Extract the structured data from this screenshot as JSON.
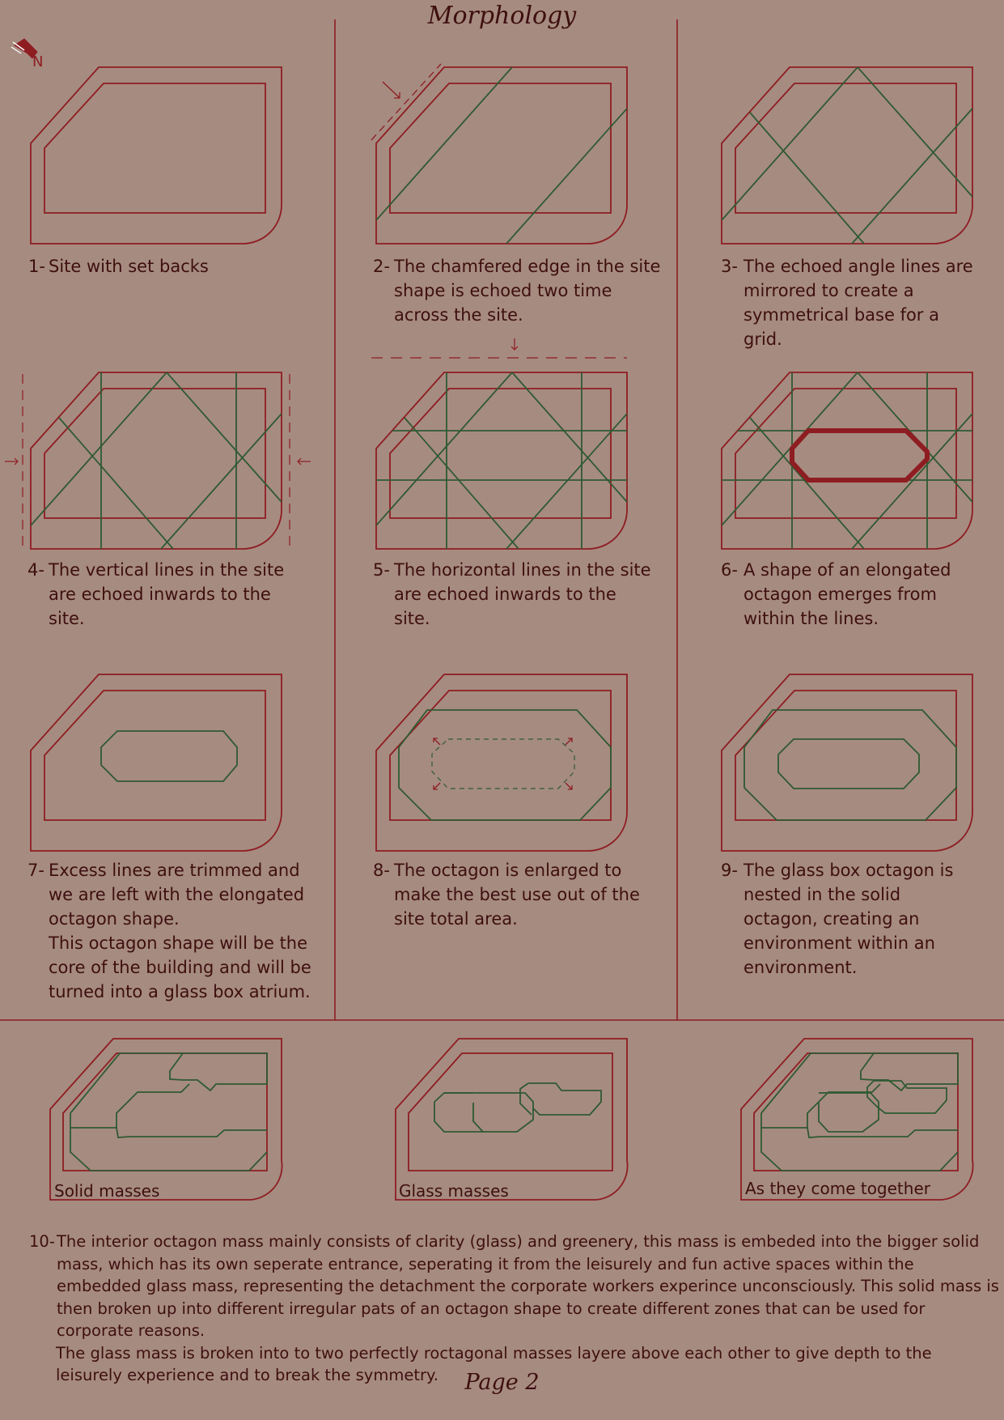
{
  "page": {
    "title": "Morphology",
    "page_label": "Page 2",
    "north_label": "N"
  },
  "steps": [
    {
      "num": "1-",
      "text": "Site with set backs"
    },
    {
      "num": "2-",
      "text": "The chamfered edge in the site shape is echoed two time across the site."
    },
    {
      "num": "3-",
      "text": "The echoed angle lines are mirrored to create a symmetrical base for a grid."
    },
    {
      "num": "4-",
      "text": "The vertical lines in the site are echoed inwards to the site."
    },
    {
      "num": "5-",
      "text": "The horizontal lines in the site are echoed inwards to the site."
    },
    {
      "num": "6-",
      "text": "A shape of an elongated octagon emerges from within the lines."
    },
    {
      "num": "7-",
      "text": "Excess lines are trimmed and we are left with the elongated octagon shape.",
      "text2": "This octagon shape will be the core of the building and will be turned into a glass box atrium."
    },
    {
      "num": "8-",
      "text": "The octagon is enlarged to make the best use out of the site total area."
    },
    {
      "num": "9-",
      "text": "The glass box octagon is nested in the solid octagon, creating an environment within an environment."
    }
  ],
  "masses": [
    {
      "label": "Solid masses"
    },
    {
      "label": "Glass masses"
    },
    {
      "label": "As they come together"
    }
  ],
  "step10": {
    "num": "10-",
    "text": "The interior octagon mass mainly consists of clarity (glass) and greenery, this mass is embeded into the bigger solid mass, which has its own seperate entrance, seperating it from the leisurely and fun active spaces within the embedded glass mass, representing the detachment the corporate workers experince unconsciously. This solid mass is then broken up into different irregular pats of an octagon shape to create different zones that can be used for corporate reasons.",
    "text2": "The glass mass is broken into to two  perfectly roctagonal masses layere above each other to give depth to the leisurely experience and to break the symmetry."
  },
  "colors": {
    "background": "#a68b80",
    "site_line": "#8e1d22",
    "grid_line": "#2f5a32",
    "text": "#3e0f10"
  },
  "icons": [
    "north-arrow-icon"
  ]
}
